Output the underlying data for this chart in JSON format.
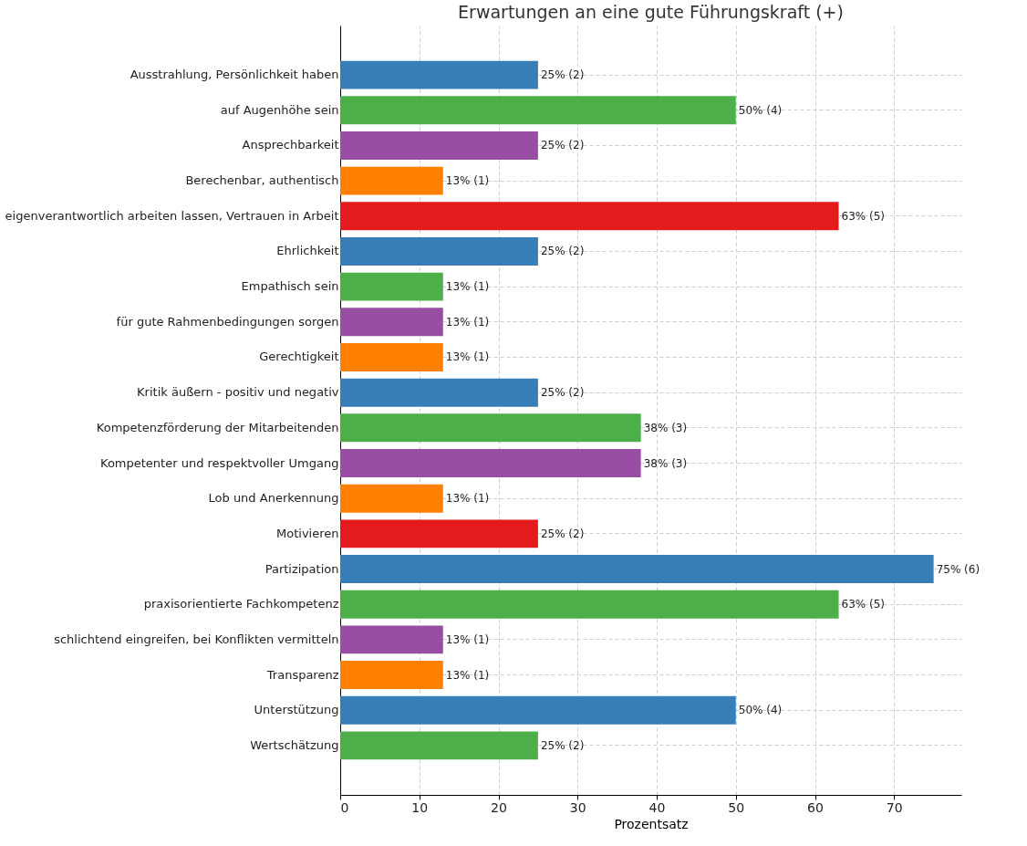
{
  "chart_data": {
    "type": "bar",
    "orientation": "horizontal",
    "title": "Erwartungen an eine gute Führungskraft (+)",
    "xlabel": "Prozentsatz",
    "categories": [
      "Ausstrahlung, Persönlichkeit haben",
      "auf Augenhöhe sein",
      "Ansprechbarkeit",
      "Berechenbar, authentisch",
      "eigenverantwortlich arbeiten lassen, Vertrauen in Arbeit",
      "Ehrlichkeit",
      "Empathisch sein",
      "für gute Rahmenbedingungen sorgen",
      "Gerechtigkeit",
      "Kritik äußern - positiv und negativ",
      "Kompetenzförderung der Mitarbeitenden",
      "Kompetenter und respektvoller Umgang",
      "Lob und Anerkennung",
      "Motivieren",
      "Partizipation",
      "praxisorientierte Fachkompetenz",
      "schlichtend eingreifen, bei Konflikten vermitteln",
      "Transparenz",
      "Unterstützung",
      "Wertschätzung"
    ],
    "values": [
      25,
      50,
      25,
      13,
      63,
      25,
      13,
      13,
      13,
      25,
      38,
      38,
      13,
      25,
      75,
      63,
      13,
      13,
      50,
      25
    ],
    "colors": [
      "#377eb8",
      "#4daf4a",
      "#984ea3",
      "#ff7f00",
      "#e41a1c",
      "#377eb8",
      "#4daf4a",
      "#984ea3",
      "#ff7f00",
      "#377eb8",
      "#4daf4a",
      "#984ea3",
      "#ff7f00",
      "#e41a1c",
      "#377eb8",
      "#4daf4a",
      "#984ea3",
      "#ff7f00",
      "#377eb8",
      "#4daf4a"
    ],
    "value_labels": [
      "25% (2)",
      "50% (4)",
      "25% (2)",
      "13% (1)",
      "63% (5)",
      "25% (2)",
      "13% (1)",
      "13% (1)",
      "13% (1)",
      "25% (2)",
      "38% (3)",
      "38% (3)",
      "13% (1)",
      "25% (2)",
      "75% (6)",
      "63% (5)",
      "13% (1)",
      "13% (1)",
      "50% (4)",
      "25% (2)"
    ],
    "xlim": [
      0,
      78.5
    ],
    "xticks": [
      0,
      10,
      20,
      30,
      40,
      50,
      60,
      70
    ],
    "grid": true
  }
}
